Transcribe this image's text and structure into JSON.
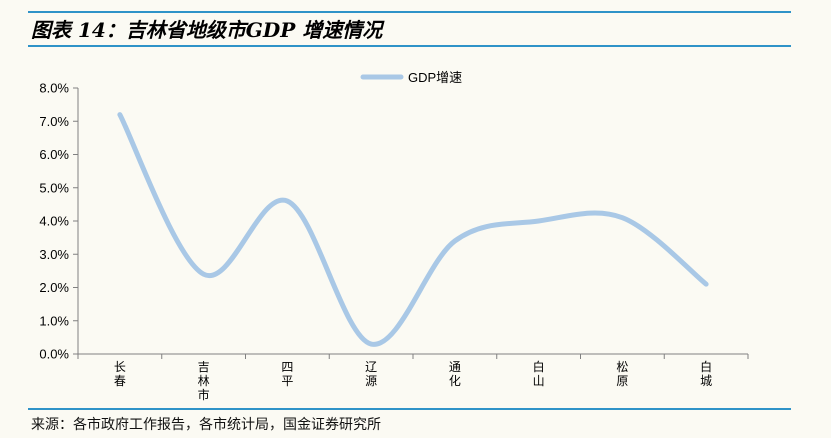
{
  "header": {
    "title": "图表 14：吉林省地级市GDP 增速情况"
  },
  "footer": {
    "source": "来源：各市政府工作报告，各市统计局，国金证券研究所"
  },
  "colors": {
    "series_line": "#a9c8e6",
    "accent_rule": "#2f93c8",
    "axis": "#808080",
    "background": "#fbfaf3"
  },
  "chart_data": {
    "type": "line",
    "title": "",
    "xlabel": "",
    "ylabel": "",
    "categories": [
      "长春",
      "吉林市",
      "四平",
      "辽源",
      "通化",
      "白山",
      "松原",
      "白城"
    ],
    "series": [
      {
        "name": "GDP增速",
        "values": [
          7.2,
          2.4,
          4.6,
          0.3,
          3.4,
          4.0,
          4.1,
          2.1
        ]
      }
    ],
    "ylim": [
      0,
      8
    ],
    "yticks": [
      0,
      1,
      2,
      3,
      4,
      5,
      6,
      7,
      8
    ],
    "ytick_labels": [
      "0.0%",
      "1.0%",
      "2.0%",
      "3.0%",
      "4.0%",
      "5.0%",
      "6.0%",
      "7.0%",
      "8.0%"
    ],
    "grid": false,
    "legend_position": "top-center",
    "smooth": true
  }
}
